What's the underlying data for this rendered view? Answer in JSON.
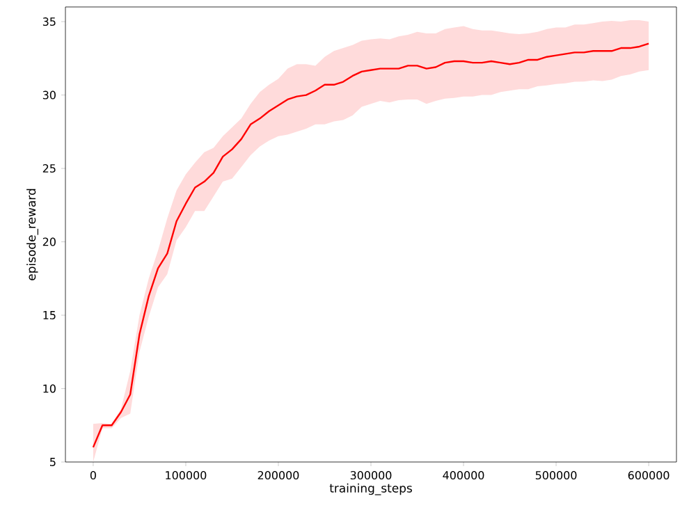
{
  "chart_data": {
    "type": "line",
    "xlabel": "training_steps",
    "ylabel": "episode_reward",
    "xlim": [
      -30000,
      630000
    ],
    "ylim": [
      5,
      36
    ],
    "xticks": [
      0,
      100000,
      200000,
      300000,
      400000,
      500000,
      600000
    ],
    "yticks": [
      5,
      10,
      15,
      20,
      25,
      30,
      35
    ],
    "grid": false,
    "x": [
      0,
      10000,
      20000,
      30000,
      40000,
      50000,
      60000,
      70000,
      80000,
      90000,
      100000,
      110000,
      120000,
      130000,
      140000,
      150000,
      160000,
      170000,
      180000,
      190000,
      200000,
      210000,
      220000,
      230000,
      240000,
      250000,
      260000,
      270000,
      280000,
      290000,
      300000,
      310000,
      320000,
      330000,
      340000,
      350000,
      360000,
      370000,
      380000,
      390000,
      400000,
      410000,
      420000,
      430000,
      440000,
      450000,
      460000,
      470000,
      480000,
      490000,
      500000,
      510000,
      520000,
      530000,
      540000,
      550000,
      560000,
      570000,
      580000,
      590000,
      600000
    ],
    "series": [
      {
        "color": "#ff0000",
        "values": [
          6.0,
          7.5,
          7.5,
          8.4,
          9.6,
          13.7,
          16.3,
          18.2,
          19.2,
          21.4,
          22.6,
          23.7,
          24.1,
          24.7,
          25.8,
          26.3,
          27.0,
          28.0,
          28.4,
          28.9,
          29.3,
          29.7,
          29.9,
          30.0,
          30.3,
          30.7,
          30.7,
          30.9,
          31.3,
          31.6,
          31.7,
          31.8,
          31.8,
          31.8,
          32.0,
          32.0,
          31.8,
          31.9,
          32.2,
          32.3,
          32.3,
          32.2,
          32.2,
          32.3,
          32.2,
          32.1,
          32.2,
          32.4,
          32.4,
          32.6,
          32.7,
          32.8,
          32.9,
          32.9,
          33.0,
          33.0,
          33.0,
          33.2,
          33.2,
          33.3,
          33.5
        ],
        "lower": [
          5.0,
          7.3,
          7.3,
          8.0,
          8.3,
          12.5,
          14.9,
          16.9,
          17.8,
          20.1,
          21.0,
          22.1,
          22.1,
          23.1,
          24.1,
          24.3,
          25.1,
          25.9,
          26.5,
          26.9,
          27.2,
          27.3,
          27.5,
          27.7,
          28.0,
          28.0,
          28.2,
          28.3,
          28.6,
          29.2,
          29.4,
          29.6,
          29.5,
          29.65,
          29.7,
          29.7,
          29.4,
          29.6,
          29.75,
          29.8,
          29.9,
          29.9,
          30.0,
          30.0,
          30.2,
          30.3,
          30.4,
          30.4,
          30.6,
          30.65,
          30.75,
          30.8,
          30.9,
          30.92,
          31.0,
          30.95,
          31.05,
          31.3,
          31.4,
          31.6,
          31.7
        ],
        "upper": [
          7.6,
          7.65,
          7.6,
          8.6,
          11.2,
          15.0,
          17.5,
          19.4,
          21.6,
          23.5,
          24.6,
          25.4,
          26.1,
          26.4,
          27.2,
          27.8,
          28.4,
          29.4,
          30.2,
          30.7,
          31.1,
          31.8,
          32.1,
          32.1,
          32.0,
          32.6,
          33.0,
          33.2,
          33.4,
          33.7,
          33.8,
          33.85,
          33.8,
          34.0,
          34.1,
          34.3,
          34.2,
          34.2,
          34.5,
          34.6,
          34.7,
          34.5,
          34.4,
          34.4,
          34.3,
          34.2,
          34.15,
          34.2,
          34.3,
          34.5,
          34.6,
          34.6,
          34.8,
          34.8,
          34.9,
          35.0,
          35.05,
          35.0,
          35.1,
          35.1,
          35.0
        ]
      }
    ]
  }
}
